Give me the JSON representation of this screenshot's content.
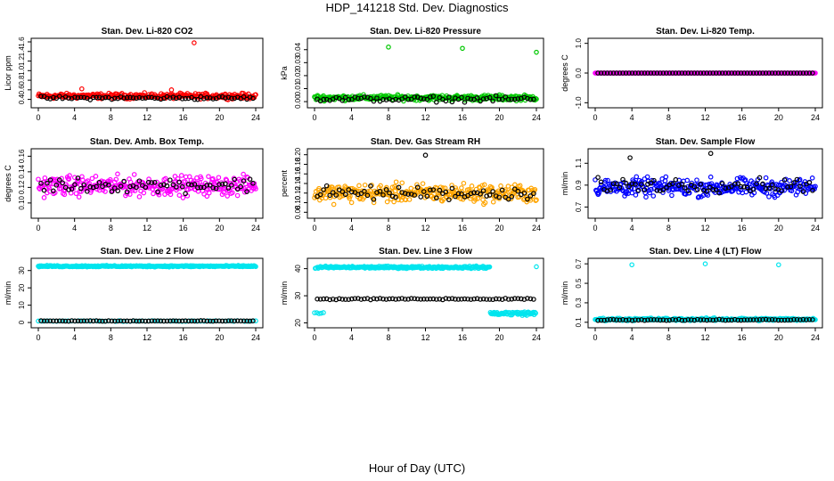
{
  "title": "HDP_141218  Std. Dev. Diagnostics",
  "x_caption": "Hour of Day (UTC)",
  "chart_data": [
    {
      "type": "scatter",
      "title": "Stan. Dev. Li-820 CO2",
      "ylabel": "Licor ppm",
      "xlim": [
        0,
        24
      ],
      "ylim": [
        0.3,
        1.6
      ],
      "xticks": [
        "0",
        "4",
        "8",
        "12",
        "16",
        "20",
        "24"
      ],
      "yticks": [
        "0.4",
        "0.6",
        "0.8",
        "1.0",
        "1.2",
        "1.4",
        "1.6"
      ],
      "colors": {
        "primary": "#ff0000",
        "secondary": "#000000"
      },
      "primary": {
        "center": 0.47,
        "spread": 0.08,
        "high": [
          [
            4.8,
            0.62
          ],
          [
            17.2,
            1.58
          ],
          [
            14.7,
            0.6
          ]
        ]
      },
      "secondary": {
        "center": 0.43,
        "spread": 0.05
      }
    },
    {
      "type": "scatter",
      "title": "Stan. Dev. Li-820 Pressure",
      "ylabel": "kPa",
      "xlim": [
        0,
        24
      ],
      "ylim": [
        -0.002,
        0.046
      ],
      "xticks": [
        "0",
        "4",
        "8",
        "12",
        "16",
        "20",
        "24"
      ],
      "yticks": [
        "0.00",
        "0.01",
        "0.02",
        "0.03",
        "0.04"
      ],
      "colors": {
        "primary": "#00c800",
        "secondary": "#000000"
      },
      "primary": {
        "center": 0.003,
        "spread": 0.003,
        "high": [
          [
            8.0,
            0.042
          ],
          [
            16.0,
            0.041
          ],
          [
            24.0,
            0.038
          ]
        ]
      },
      "secondary": {
        "center": 0.002,
        "spread": 0.003
      }
    },
    {
      "type": "scatter",
      "title": "Stan. Dev. Li-820 Temp.",
      "ylabel": "degrees C",
      "xlim": [
        0,
        24
      ],
      "ylim": [
        -1.05,
        1.05
      ],
      "xticks": [
        "0",
        "4",
        "8",
        "12",
        "16",
        "20",
        "24"
      ],
      "yticks": [
        "-1.0",
        "0.0",
        "1.0"
      ],
      "colors": {
        "primary": "#ff00ff",
        "secondary": "#000000"
      },
      "primary": {
        "center": 0.0,
        "spread": 0.0
      },
      "secondary": {
        "center": 0.0,
        "spread": 0.0
      }
    },
    {
      "type": "scatter",
      "title": "Stan. Dev. Amb. Box Temp.",
      "ylabel": "degrees C",
      "xlim": [
        0,
        24
      ],
      "ylim": [
        0.085,
        0.165
      ],
      "xticks": [
        "0",
        "4",
        "8",
        "12",
        "16",
        "20",
        "24"
      ],
      "yticks": [
        "0.10",
        "0.12",
        "0.14",
        "0.16"
      ],
      "colors": {
        "primary": "#ff00ff",
        "secondary": "#000000"
      },
      "primary": {
        "center": 0.122,
        "spread": 0.018
      },
      "secondary": {
        "center": 0.123,
        "spread": 0.013
      }
    },
    {
      "type": "scatter",
      "title": "Stan. Dev. Gas Stream RH",
      "ylabel": "percent",
      "xlim": [
        0,
        24
      ],
      "ylim": [
        0.075,
        0.205
      ],
      "xticks": [
        "0",
        "4",
        "8",
        "12",
        "16",
        "20",
        "24"
      ],
      "yticks": [
        "0.08",
        "0.10",
        "0.12",
        "0.14",
        "0.16",
        "0.18",
        "0.20"
      ],
      "colors": {
        "primary": "#ffa500",
        "secondary": "#000000"
      },
      "primary": {
        "center": 0.12,
        "spread": 0.028
      },
      "secondary": {
        "center": 0.12,
        "spread": 0.02,
        "high": [
          [
            12.0,
            0.199
          ]
        ]
      }
    },
    {
      "type": "scatter",
      "title": "Stan. Dev. Sample Flow",
      "ylabel": "ml/min",
      "xlim": [
        0,
        24
      ],
      "ylim": [
        0.63,
        1.2
      ],
      "xticks": [
        "0",
        "4",
        "8",
        "12",
        "16",
        "20",
        "24"
      ],
      "yticks": [
        "0.7",
        "0.9",
        "1.1"
      ],
      "colors": {
        "primary": "#0000ff",
        "secondary": "#000000"
      },
      "primary": {
        "center": 0.88,
        "spread": 0.12
      },
      "secondary": {
        "center": 0.9,
        "spread": 0.09,
        "high": [
          [
            12.6,
            1.19
          ],
          [
            3.8,
            1.15
          ]
        ]
      }
    },
    {
      "type": "scatter",
      "title": "Stan. Dev. Line 2 Flow",
      "ylabel": "ml/min",
      "xlim": [
        0,
        24
      ],
      "ylim": [
        -1,
        35
      ],
      "xticks": [
        "0",
        "4",
        "8",
        "12",
        "16",
        "20",
        "24"
      ],
      "yticks": [
        "0",
        "10",
        "20",
        "30"
      ],
      "colors": {
        "primary": "#00e5ee",
        "secondary": "#000000"
      },
      "primary": {
        "center": 32.5,
        "spread": 0.6,
        "low_band": {
          "center": 0.8,
          "spread": 0.3
        }
      },
      "secondary": {
        "center": 0.9,
        "spread": 0.2
      }
    },
    {
      "type": "scatter",
      "title": "Stan. Dev. Line 3 Flow",
      "ylabel": "ml/min",
      "xlim": [
        0,
        24
      ],
      "ylim": [
        19.5,
        42.5
      ],
      "xticks": [
        "0",
        "4",
        "8",
        "12",
        "16",
        "20",
        "24"
      ],
      "yticks": [
        "20",
        "30",
        "40"
      ],
      "colors": {
        "primary": "#00e5ee",
        "secondary": "#000000"
      },
      "primary": {
        "center": 40.5,
        "spread": 0.6,
        "low_band": {
          "center": 23.5,
          "spread": 1.0
        }
      },
      "secondary": {
        "center": 28.8,
        "spread": 0.4
      }
    },
    {
      "type": "scatter",
      "title": "Stan. Dev. Line 4 (LT) Flow",
      "ylabel": "ml/min",
      "xlim": [
        0,
        24
      ],
      "ylim": [
        0.08,
        0.72
      ],
      "xticks": [
        "0",
        "4",
        "8",
        "12",
        "16",
        "20",
        "24"
      ],
      "yticks": [
        "0.1",
        "0.3",
        "0.5",
        "0.7"
      ],
      "colors": {
        "primary": "#00e5ee",
        "secondary": "#000000"
      },
      "primary": {
        "center": 0.13,
        "spread": 0.02,
        "high": [
          [
            4.0,
            0.69
          ],
          [
            12.0,
            0.7
          ],
          [
            20.0,
            0.69
          ]
        ]
      },
      "secondary": {
        "center": 0.125,
        "spread": 0.01
      }
    }
  ]
}
